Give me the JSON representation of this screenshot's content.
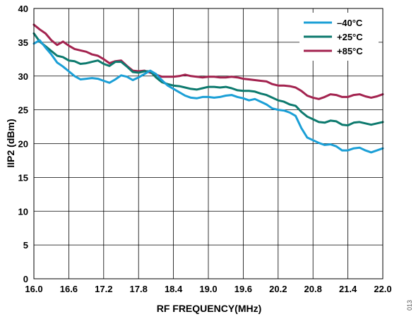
{
  "chart_data": {
    "type": "line",
    "xlabel": "RF FREQUENCY(MHz)",
    "ylabel": "IIP2 (dBm)",
    "xlim": [
      16.0,
      22.0
    ],
    "ylim": [
      0,
      40
    ],
    "xticks": [
      "16.0",
      "16.6",
      "17.2",
      "17.8",
      "18.4",
      "19.0",
      "19.6",
      "20.2",
      "20.8",
      "21.4",
      "22.0"
    ],
    "yticks": [
      "0",
      "5",
      "10",
      "15",
      "20",
      "25",
      "30",
      "35",
      "40"
    ],
    "grid": true,
    "legend_position": "top-right",
    "x": [
      16.0,
      16.1,
      16.2,
      16.3,
      16.4,
      16.5,
      16.6,
      16.7,
      16.8,
      16.9,
      17.0,
      17.1,
      17.2,
      17.3,
      17.4,
      17.5,
      17.6,
      17.7,
      17.8,
      17.9,
      18.0,
      18.1,
      18.2,
      18.3,
      18.4,
      18.5,
      18.6,
      18.7,
      18.8,
      18.9,
      19.0,
      19.1,
      19.2,
      19.3,
      19.4,
      19.5,
      19.6,
      19.7,
      19.8,
      19.9,
      20.0,
      20.1,
      20.2,
      20.3,
      20.4,
      20.5,
      20.6,
      20.7,
      20.8,
      20.9,
      21.0,
      21.1,
      21.2,
      21.3,
      21.4,
      21.5,
      21.6,
      21.7,
      21.8,
      21.9,
      22.0
    ],
    "series": [
      {
        "name": "–40°C",
        "color": "#1b9fd6",
        "values": [
          34.8,
          35.3,
          34.2,
          33.2,
          32.0,
          31.4,
          30.7,
          30.0,
          29.5,
          29.6,
          29.7,
          29.6,
          29.3,
          29.0,
          29.5,
          30.1,
          29.9,
          29.4,
          29.8,
          30.3,
          30.8,
          30.3,
          29.4,
          28.6,
          28.1,
          27.6,
          27.1,
          26.8,
          26.7,
          26.9,
          26.9,
          26.8,
          26.9,
          27.1,
          27.2,
          26.9,
          26.7,
          26.4,
          26.6,
          26.2,
          25.8,
          25.2,
          25.0,
          24.9,
          24.6,
          24.1,
          22.3,
          20.9,
          20.5,
          20.1,
          19.8,
          19.9,
          19.6,
          19.0,
          19.0,
          19.3,
          19.4,
          19.0,
          18.7,
          19.0,
          19.3
        ]
      },
      {
        "name": "+25°C",
        "color": "#0d7a6e",
        "values": [
          36.3,
          35.1,
          34.4,
          33.7,
          33.0,
          32.8,
          32.3,
          32.2,
          31.8,
          31.9,
          32.1,
          32.3,
          31.8,
          31.5,
          32.1,
          32.1,
          31.4,
          30.6,
          30.5,
          30.7,
          30.7,
          29.8,
          29.1,
          28.8,
          28.6,
          28.5,
          28.3,
          28.1,
          28.0,
          28.2,
          28.4,
          28.4,
          28.3,
          28.4,
          28.2,
          27.9,
          27.8,
          27.8,
          27.7,
          27.4,
          27.2,
          26.8,
          26.4,
          26.2,
          25.8,
          25.6,
          24.7,
          24.0,
          23.6,
          23.2,
          23.1,
          23.4,
          23.3,
          22.8,
          22.7,
          23.1,
          23.2,
          23.0,
          22.8,
          23.0,
          23.2
        ]
      },
      {
        "name": "+85°C",
        "color": "#a3234f",
        "values": [
          37.6,
          36.9,
          36.3,
          35.3,
          34.6,
          35.1,
          34.5,
          34.0,
          33.8,
          33.6,
          33.2,
          33.0,
          32.5,
          31.9,
          32.2,
          32.3,
          31.5,
          30.8,
          30.7,
          30.8,
          30.5,
          30.2,
          29.9,
          29.9,
          29.9,
          30.0,
          30.2,
          30.0,
          29.9,
          29.8,
          29.9,
          29.9,
          29.8,
          29.8,
          29.9,
          29.8,
          29.6,
          29.5,
          29.4,
          29.3,
          29.2,
          28.8,
          28.6,
          28.6,
          28.5,
          28.3,
          27.8,
          27.1,
          26.8,
          26.6,
          26.9,
          27.3,
          27.2,
          26.9,
          26.9,
          27.2,
          27.3,
          27.0,
          26.8,
          27.0,
          27.3
        ]
      }
    ]
  },
  "figure_id": "013"
}
